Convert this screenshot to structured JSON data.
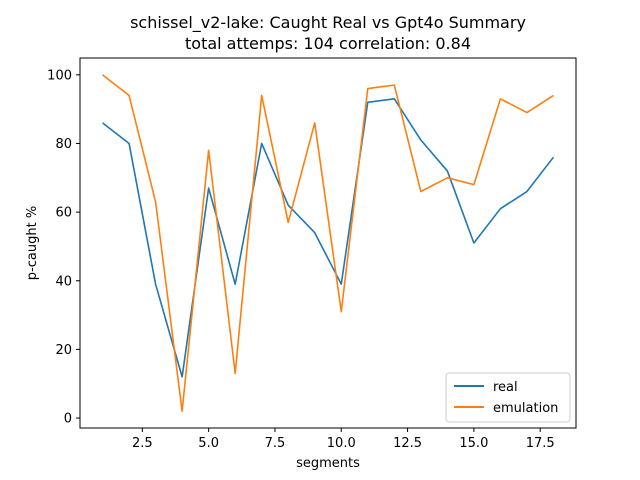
{
  "chart_data": {
    "type": "line",
    "title_line1": "schissel_v2-lake: Caught Real vs Gpt4o Summary",
    "title_line2": "total attemps: 104 correlation: 0.84",
    "xlabel": "segments",
    "ylabel": "p-caught %",
    "xlim": [
      0.15,
      18.85
    ],
    "ylim": [
      -2.9,
      104.9
    ],
    "xticks": [
      2.5,
      5.0,
      7.5,
      10.0,
      12.5,
      15.0,
      17.5
    ],
    "xtick_labels": [
      "2.5",
      "5.0",
      "7.5",
      "10.0",
      "12.5",
      "15.0",
      "17.5"
    ],
    "yticks": [
      0,
      20,
      40,
      60,
      80,
      100
    ],
    "ytick_labels": [
      "0",
      "20",
      "40",
      "60",
      "80",
      "100"
    ],
    "x": [
      1,
      2,
      3,
      4,
      5,
      6,
      7,
      8,
      9,
      10,
      11,
      12,
      13,
      14,
      15,
      16,
      17,
      18
    ],
    "series": [
      {
        "name": "real",
        "color": "#1f77b4",
        "values": [
          86,
          80,
          39,
          12,
          67,
          39,
          80,
          62,
          54,
          39,
          92,
          93,
          81,
          72,
          51,
          61,
          66,
          76
        ]
      },
      {
        "name": "emulation",
        "color": "#ff7f0e",
        "values": [
          100,
          94,
          63,
          2,
          78,
          13,
          94,
          57,
          86,
          31,
          96,
          97,
          66,
          70,
          68,
          93,
          89,
          94
        ]
      }
    ],
    "legend_position": "lower-right",
    "grid": false
  }
}
